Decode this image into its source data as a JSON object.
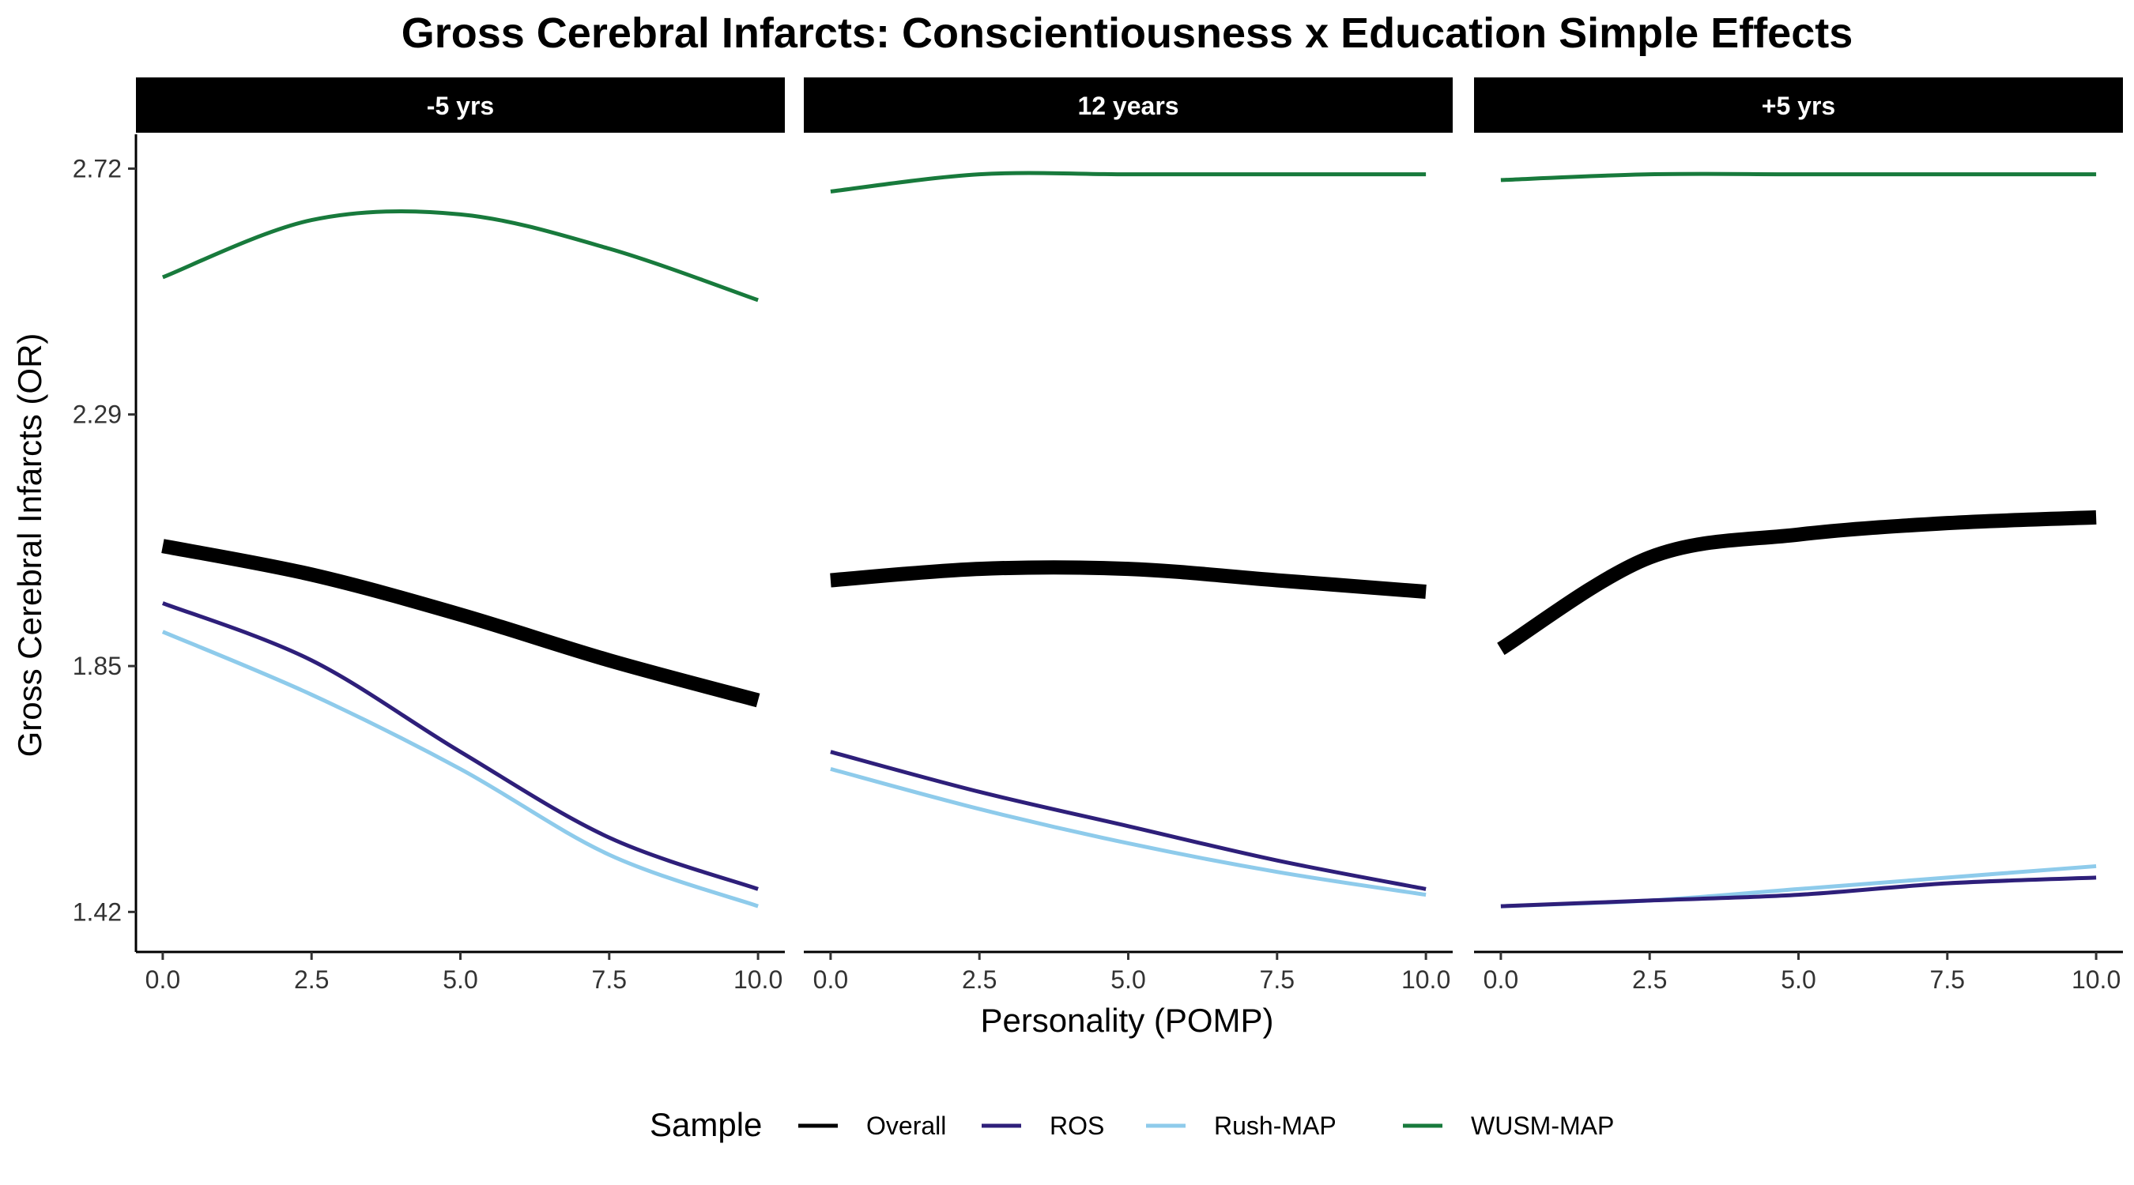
{
  "chart_data": {
    "type": "line",
    "title": "Gross Cerebral Infarcts: Conscientiousness x Education Simple Effects",
    "xlabel": "Personality (POMP)",
    "ylabel": "Gross Cerebral Infarcts (OR)",
    "xlim": [
      -0.45,
      10.45
    ],
    "ylim": [
      1.35,
      2.78
    ],
    "x_ticks": [
      0,
      2.5,
      5,
      7.5,
      10
    ],
    "x_tick_labels": [
      "0.0",
      "2.5",
      "5.0",
      "7.5",
      "10.0"
    ],
    "y_ticks": [
      1.42,
      1.85,
      2.29,
      2.72
    ],
    "y_tick_labels": [
      "1.42",
      "1.85",
      "2.29",
      "2.72"
    ],
    "grid": false,
    "legend": {
      "title": "Sample",
      "position": "bottom",
      "entries": [
        "Overall",
        "ROS",
        "Rush-MAP",
        "WUSM-MAP"
      ]
    },
    "colors": {
      "Overall": "#000000",
      "ROS": "#2e1f7a",
      "Rush-MAP": "#8ecbeb",
      "WUSM-MAP": "#187a3c"
    },
    "facets": [
      {
        "label": "-5 yrs",
        "x": [
          0,
          2.5,
          5,
          7.5,
          10
        ],
        "series": [
          {
            "name": "Overall",
            "values": [
              2.06,
              2.01,
              1.94,
              1.86,
              1.79
            ]
          },
          {
            "name": "ROS",
            "values": [
              1.96,
              1.86,
              1.7,
              1.55,
              1.46
            ]
          },
          {
            "name": "Rush-MAP",
            "values": [
              1.91,
              1.8,
              1.67,
              1.52,
              1.43
            ]
          },
          {
            "name": "WUSM-MAP",
            "values": [
              2.53,
              2.63,
              2.64,
              2.58,
              2.49
            ]
          }
        ]
      },
      {
        "label": "12 years",
        "x": [
          0,
          2.5,
          5,
          7.5,
          10
        ],
        "series": [
          {
            "name": "Overall",
            "values": [
              2.0,
              2.02,
              2.02,
              2.0,
              1.98
            ]
          },
          {
            "name": "ROS",
            "values": [
              1.7,
              1.63,
              1.57,
              1.51,
              1.46
            ]
          },
          {
            "name": "Rush-MAP",
            "values": [
              1.67,
              1.6,
              1.54,
              1.49,
              1.45
            ]
          },
          {
            "name": "WUSM-MAP",
            "values": [
              2.68,
              2.71,
              2.71,
              2.71,
              2.71
            ]
          }
        ]
      },
      {
        "label": "+5 yrs",
        "x": [
          0,
          2.5,
          5,
          7.5,
          10
        ],
        "series": [
          {
            "name": "Overall",
            "values": [
              1.88,
              2.04,
              2.08,
              2.1,
              2.11
            ]
          },
          {
            "name": "ROS",
            "values": [
              1.43,
              1.44,
              1.45,
              1.47,
              1.48
            ]
          },
          {
            "name": "Rush-MAP",
            "values": [
              1.43,
              1.44,
              1.46,
              1.48,
              1.5
            ]
          },
          {
            "name": "WUSM-MAP",
            "values": [
              2.7,
              2.71,
              2.71,
              2.71,
              2.71
            ]
          }
        ]
      }
    ]
  }
}
